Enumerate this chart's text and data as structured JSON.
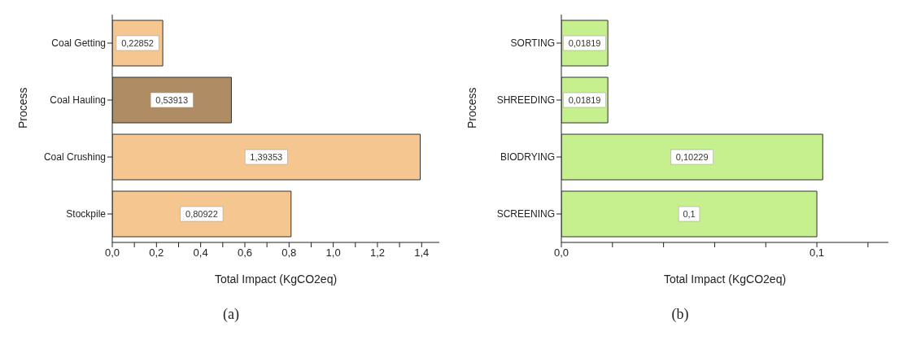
{
  "chart_data": [
    {
      "type": "bar",
      "orientation": "horizontal",
      "categories": [
        "Coal Getting",
        "Coal Hauling",
        "Coal Crushing",
        "Stockpile"
      ],
      "values": [
        0.22852,
        0.53913,
        1.39353,
        0.80922
      ],
      "value_labels": [
        "0,22852",
        "0,53913",
        "1,39353",
        "0,80922"
      ],
      "colors": [
        "#f5c690",
        "#b08c64",
        "#f5c690",
        "#f5c690"
      ],
      "xlim": [
        0,
        1.48
      ],
      "xticks": [
        {
          "value": 0,
          "label": "0,0"
        },
        {
          "value": 0.1,
          "label": null
        },
        {
          "value": 0.2,
          "label": "0,2"
        },
        {
          "value": 0.3,
          "label": null
        },
        {
          "value": 0.4,
          "label": "0,4"
        },
        {
          "value": 0.5,
          "label": null
        },
        {
          "value": 0.6,
          "label": "0,6"
        },
        {
          "value": 0.7,
          "label": null
        },
        {
          "value": 0.8,
          "label": "0,8"
        },
        {
          "value": 0.9,
          "label": null
        },
        {
          "value": 1.0,
          "label": "1,0"
        },
        {
          "value": 1.1,
          "label": null
        },
        {
          "value": 1.2,
          "label": "1,2"
        },
        {
          "value": 1.3,
          "label": null
        },
        {
          "value": 1.4,
          "label": "1,4"
        }
      ],
      "xlabel": "Total Impact (KgCO2eq)",
      "ylabel": "Process",
      "annotations": [
        "(a)"
      ]
    },
    {
      "type": "bar",
      "orientation": "horizontal",
      "categories": [
        "SORTING",
        "SHREEDING",
        "BIODRYING",
        "SCREENING"
      ],
      "values": [
        0.01819,
        0.01819,
        0.10229,
        0.1
      ],
      "value_labels": [
        "0,01819",
        "0,01819",
        "0,10229",
        "0,1"
      ],
      "colors": [
        "#c6f08e",
        "#c6f08e",
        "#c6f08e",
        "#c6f08e"
      ],
      "xlim": [
        0,
        0.128
      ],
      "xticks": [
        {
          "value": 0,
          "label": "0,0"
        },
        {
          "value": 0.02,
          "label": null
        },
        {
          "value": 0.04,
          "label": null
        },
        {
          "value": 0.06,
          "label": null
        },
        {
          "value": 0.08,
          "label": null
        },
        {
          "value": 0.1,
          "label": "0,1"
        },
        {
          "value": 0.12,
          "label": null
        }
      ],
      "xlabel": "Total Impact (KgCO2eq)",
      "ylabel": "Process",
      "annotations": [
        "(b)"
      ]
    }
  ]
}
